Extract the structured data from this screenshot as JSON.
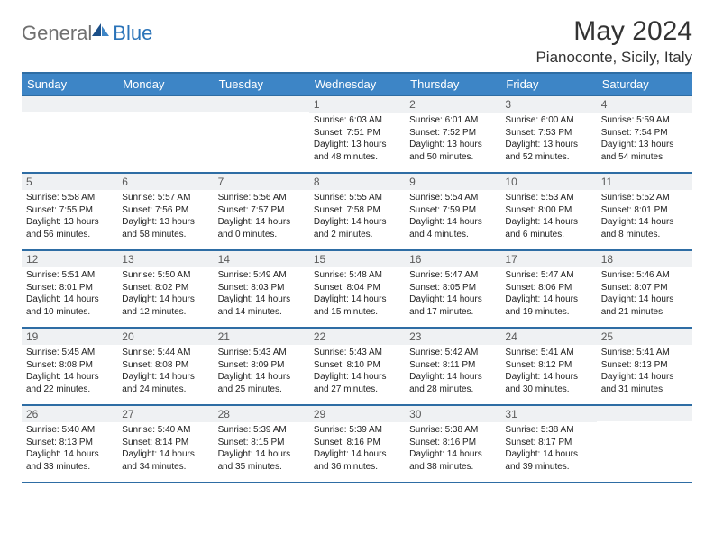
{
  "brand": {
    "part1": "General",
    "part2": "Blue"
  },
  "title": "May 2024",
  "location": "Pianoconte, Sicily, Italy",
  "colors": {
    "header_bg": "#3d85c6",
    "header_border": "#2e6da4",
    "daynum_bg": "#eff1f3",
    "text": "#333333",
    "brand_gray": "#6f6f6f",
    "brand_blue": "#2a73b8"
  },
  "weekdays": [
    "Sunday",
    "Monday",
    "Tuesday",
    "Wednesday",
    "Thursday",
    "Friday",
    "Saturday"
  ],
  "grid": [
    [
      null,
      null,
      null,
      {
        "n": "1",
        "sr": "6:03 AM",
        "ss": "7:51 PM",
        "dh": "13",
        "dm": "48"
      },
      {
        "n": "2",
        "sr": "6:01 AM",
        "ss": "7:52 PM",
        "dh": "13",
        "dm": "50"
      },
      {
        "n": "3",
        "sr": "6:00 AM",
        "ss": "7:53 PM",
        "dh": "13",
        "dm": "52"
      },
      {
        "n": "4",
        "sr": "5:59 AM",
        "ss": "7:54 PM",
        "dh": "13",
        "dm": "54"
      }
    ],
    [
      {
        "n": "5",
        "sr": "5:58 AM",
        "ss": "7:55 PM",
        "dh": "13",
        "dm": "56"
      },
      {
        "n": "6",
        "sr": "5:57 AM",
        "ss": "7:56 PM",
        "dh": "13",
        "dm": "58"
      },
      {
        "n": "7",
        "sr": "5:56 AM",
        "ss": "7:57 PM",
        "dh": "14",
        "dm": "0"
      },
      {
        "n": "8",
        "sr": "5:55 AM",
        "ss": "7:58 PM",
        "dh": "14",
        "dm": "2"
      },
      {
        "n": "9",
        "sr": "5:54 AM",
        "ss": "7:59 PM",
        "dh": "14",
        "dm": "4"
      },
      {
        "n": "10",
        "sr": "5:53 AM",
        "ss": "8:00 PM",
        "dh": "14",
        "dm": "6"
      },
      {
        "n": "11",
        "sr": "5:52 AM",
        "ss": "8:01 PM",
        "dh": "14",
        "dm": "8"
      }
    ],
    [
      {
        "n": "12",
        "sr": "5:51 AM",
        "ss": "8:01 PM",
        "dh": "14",
        "dm": "10"
      },
      {
        "n": "13",
        "sr": "5:50 AM",
        "ss": "8:02 PM",
        "dh": "14",
        "dm": "12"
      },
      {
        "n": "14",
        "sr": "5:49 AM",
        "ss": "8:03 PM",
        "dh": "14",
        "dm": "14"
      },
      {
        "n": "15",
        "sr": "5:48 AM",
        "ss": "8:04 PM",
        "dh": "14",
        "dm": "15"
      },
      {
        "n": "16",
        "sr": "5:47 AM",
        "ss": "8:05 PM",
        "dh": "14",
        "dm": "17"
      },
      {
        "n": "17",
        "sr": "5:47 AM",
        "ss": "8:06 PM",
        "dh": "14",
        "dm": "19"
      },
      {
        "n": "18",
        "sr": "5:46 AM",
        "ss": "8:07 PM",
        "dh": "14",
        "dm": "21"
      }
    ],
    [
      {
        "n": "19",
        "sr": "5:45 AM",
        "ss": "8:08 PM",
        "dh": "14",
        "dm": "22"
      },
      {
        "n": "20",
        "sr": "5:44 AM",
        "ss": "8:08 PM",
        "dh": "14",
        "dm": "24"
      },
      {
        "n": "21",
        "sr": "5:43 AM",
        "ss": "8:09 PM",
        "dh": "14",
        "dm": "25"
      },
      {
        "n": "22",
        "sr": "5:43 AM",
        "ss": "8:10 PM",
        "dh": "14",
        "dm": "27"
      },
      {
        "n": "23",
        "sr": "5:42 AM",
        "ss": "8:11 PM",
        "dh": "14",
        "dm": "28"
      },
      {
        "n": "24",
        "sr": "5:41 AM",
        "ss": "8:12 PM",
        "dh": "14",
        "dm": "30"
      },
      {
        "n": "25",
        "sr": "5:41 AM",
        "ss": "8:13 PM",
        "dh": "14",
        "dm": "31"
      }
    ],
    [
      {
        "n": "26",
        "sr": "5:40 AM",
        "ss": "8:13 PM",
        "dh": "14",
        "dm": "33"
      },
      {
        "n": "27",
        "sr": "5:40 AM",
        "ss": "8:14 PM",
        "dh": "14",
        "dm": "34"
      },
      {
        "n": "28",
        "sr": "5:39 AM",
        "ss": "8:15 PM",
        "dh": "14",
        "dm": "35"
      },
      {
        "n": "29",
        "sr": "5:39 AM",
        "ss": "8:16 PM",
        "dh": "14",
        "dm": "36"
      },
      {
        "n": "30",
        "sr": "5:38 AM",
        "ss": "8:16 PM",
        "dh": "14",
        "dm": "38"
      },
      {
        "n": "31",
        "sr": "5:38 AM",
        "ss": "8:17 PM",
        "dh": "14",
        "dm": "39"
      },
      null
    ]
  ]
}
